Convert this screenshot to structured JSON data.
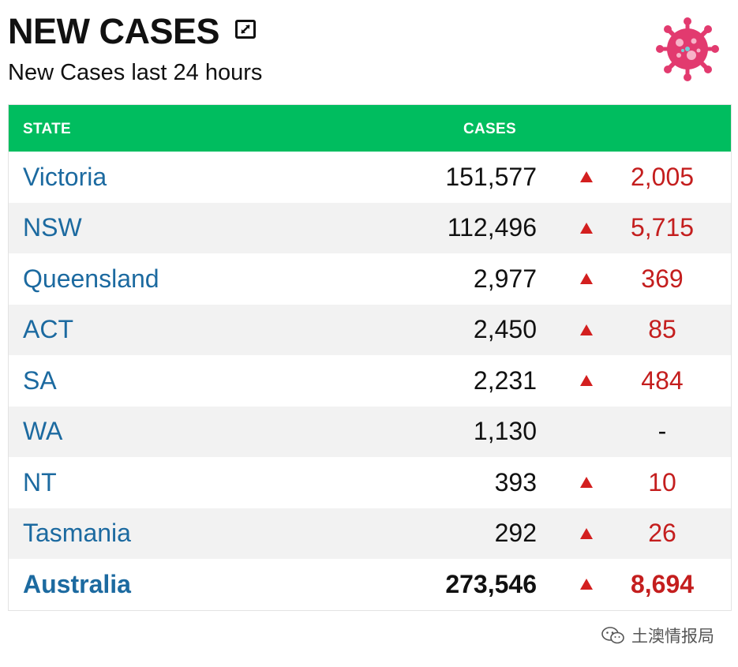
{
  "header": {
    "title": "NEW CASES",
    "subtitle": "New Cases last 24 hours",
    "expand_icon": "expand-icon",
    "virus_icon": "virus-icon"
  },
  "table": {
    "columns": {
      "state": "STATE",
      "cases": "CASES"
    },
    "rows": [
      {
        "state": "Victoria",
        "cases": "151,577",
        "arrow": "up",
        "delta": "2,005"
      },
      {
        "state": "NSW",
        "cases": "112,496",
        "arrow": "up",
        "delta": "5,715"
      },
      {
        "state": "Queensland",
        "cases": "2,977",
        "arrow": "up",
        "delta": "369"
      },
      {
        "state": "ACT",
        "cases": "2,450",
        "arrow": "up",
        "delta": "85"
      },
      {
        "state": "SA",
        "cases": "2,231",
        "arrow": "up",
        "delta": "484"
      },
      {
        "state": "WA",
        "cases": "1,130",
        "arrow": "none",
        "delta": "-"
      },
      {
        "state": "NT",
        "cases": "393",
        "arrow": "up",
        "delta": "10"
      },
      {
        "state": "Tasmania",
        "cases": "292",
        "arrow": "up",
        "delta": "26"
      }
    ],
    "total": {
      "state": "Australia",
      "cases": "273,546",
      "arrow": "up",
      "delta": "8,694"
    }
  },
  "watermark": {
    "text": "土澳情报局",
    "icon": "wechat-icon"
  },
  "colors": {
    "header_green": "#00bd5f",
    "state_blue": "#1c6aa0",
    "increase_red": "#c41e1e",
    "virus_pink": "#e23a6f"
  }
}
